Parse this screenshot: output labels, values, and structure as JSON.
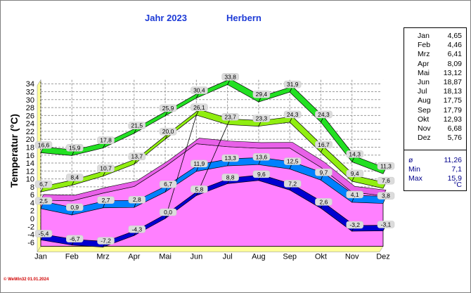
{
  "header": {
    "year": "Jahr  2023",
    "place": "Herbern"
  },
  "footer": "© WeWin32  01.01.2024",
  "chart_data": {
    "type": "area",
    "ylabel": "Temperatur  (°C)",
    "ylim": [
      -7,
      35
    ],
    "yticks": [
      -6,
      -4,
      -2,
      0,
      2,
      4,
      6,
      8,
      10,
      12,
      14,
      16,
      18,
      20,
      22,
      24,
      26,
      28,
      30,
      32,
      34
    ],
    "categories": [
      "Jan",
      "Feb",
      "Mrz",
      "Apr",
      "Mai",
      "Jun",
      "Jul",
      "Aug",
      "Sep",
      "Okt",
      "Nov",
      "Dez"
    ],
    "grid": true,
    "legend": "right side table",
    "series": [
      {
        "values": [
          16.6,
          15.9,
          17.8,
          21.5,
          25.9,
          30.4,
          33.8,
          29.4,
          31.9,
          24.3,
          14.3,
          11.3
        ],
        "labels": [
          "16,6",
          "15,9",
          "17,8",
          "21,5",
          "25,9",
          "30,4",
          "33,8",
          "29,4",
          "31,9",
          "24,3",
          "14,3",
          "11,3"
        ]
      },
      {
        "values": [
          6.7,
          8.4,
          10.7,
          13.7,
          20.0,
          26.1,
          23.7,
          23.3,
          24.3,
          16.7,
          9.4,
          7.6
        ],
        "labels": [
          "6,7",
          "8,4",
          "10,7",
          "13,7",
          "20,0",
          "26,1",
          "23,7",
          "23,3",
          "24,3",
          "16,7",
          "9,4",
          "7,6"
        ]
      },
      {
        "values": [
          2.5,
          0.9,
          2.7,
          2.8,
          6.7,
          11.9,
          13.3,
          13.6,
          12.5,
          9.7,
          4.1,
          3.8
        ],
        "labels": [
          "2,5",
          "0,9",
          "2,7",
          "2,8",
          "6,7",
          "11,9",
          "13,3",
          "13,6",
          "12,5",
          "9,7",
          "4,1",
          "3,8"
        ]
      },
      {
        "values": [
          -5.4,
          -6.7,
          -7.2,
          -4.3,
          0.0,
          5.8,
          8.8,
          9.6,
          7.2,
          2.6,
          -3.2,
          -3.1
        ],
        "labels": [
          "-5,4",
          "-6,7",
          "-7,2",
          "-4,3",
          "0,0",
          "5,8",
          "8,8",
          "9,6",
          "7,2",
          "2,6",
          "-3,2",
          "-3,1"
        ]
      },
      {
        "values": [
          4.65,
          4.46,
          6.41,
          8.09,
          13.12,
          18.87,
          18.13,
          17.75,
          17.79,
          12.93,
          6.68,
          5.76
        ]
      }
    ]
  },
  "side_table": {
    "months": [
      {
        "k": "Jan",
        "v": "4,65"
      },
      {
        "k": "Feb",
        "v": "4,46"
      },
      {
        "k": "Mrz",
        "v": "6,41"
      },
      {
        "k": "Apr",
        "v": "8,09"
      },
      {
        "k": "Mai",
        "v": "13,12"
      },
      {
        "k": "Jun",
        "v": "18,87"
      },
      {
        "k": "Jul",
        "v": "18,13"
      },
      {
        "k": "Aug",
        "v": "17,75"
      },
      {
        "k": "Sep",
        "v": "17,79"
      },
      {
        "k": "Okt",
        "v": "12,93"
      },
      {
        "k": "Nov",
        "v": "6,68"
      },
      {
        "k": "Dez",
        "v": "5,76"
      }
    ],
    "stats": [
      {
        "k": "ø",
        "v": "11,26"
      },
      {
        "k": "Min",
        "v": "7,1"
      },
      {
        "k": "Max",
        "v": "15,9"
      }
    ],
    "unit": "°C"
  },
  "colors": {
    "max_band": "#22e022",
    "maxmin_band": "#90ee10",
    "mean_band": "#0080ff",
    "min_band": "#0000d0",
    "avg_area": "#ff80ff",
    "back_wall": "#ffff99"
  }
}
